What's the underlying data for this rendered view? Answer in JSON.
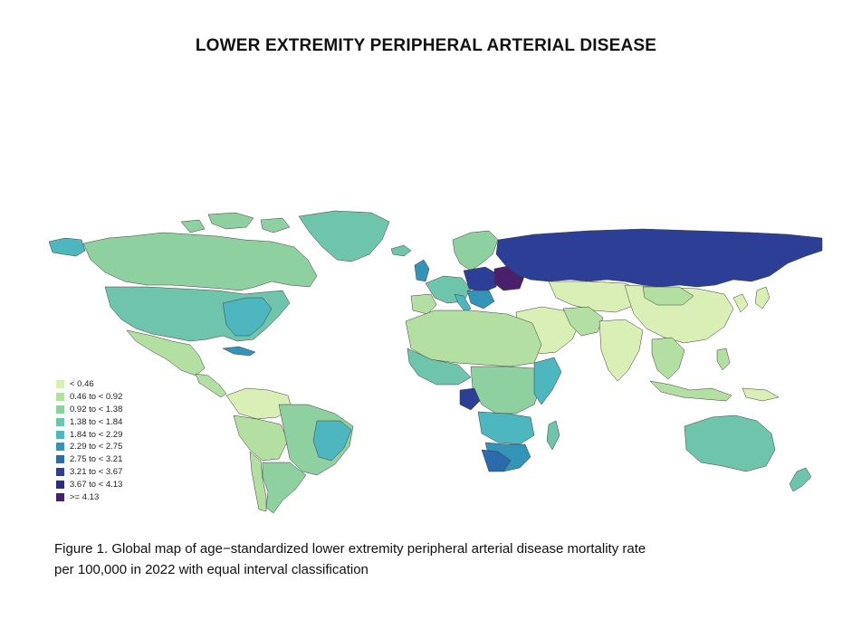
{
  "title": "LOWER EXTREMITY PERIPHERAL ARTERIAL DISEASE",
  "legend": {
    "items": [
      {
        "label": "< 0.46",
        "color": "#d9efb6"
      },
      {
        "label": "0.46 to < 0.92",
        "color": "#b3e0a2"
      },
      {
        "label": "0.92 to < 1.38",
        "color": "#8fd0a0"
      },
      {
        "label": "1.38 to < 1.84",
        "color": "#6fc5ac"
      },
      {
        "label": "1.84 to < 2.29",
        "color": "#4db6be"
      },
      {
        "label": "2.29 to < 2.75",
        "color": "#3394b8"
      },
      {
        "label": "2.75 to < 3.21",
        "color": "#2c6aab"
      },
      {
        "label": "3.21 to < 3.67",
        "color": "#2c3e95"
      },
      {
        "label": "3.67 to < 4.13",
        "color": "#2b2c84"
      },
      {
        "label": ">= 4.13",
        "color": "#4a1f6b"
      }
    ]
  },
  "caption": {
    "line1": "Figure 1. Global map of age−standardized lower extremity peripheral arterial disease mortality rate",
    "line2": "per 100,000 in 2022 with equal interval classification"
  }
}
